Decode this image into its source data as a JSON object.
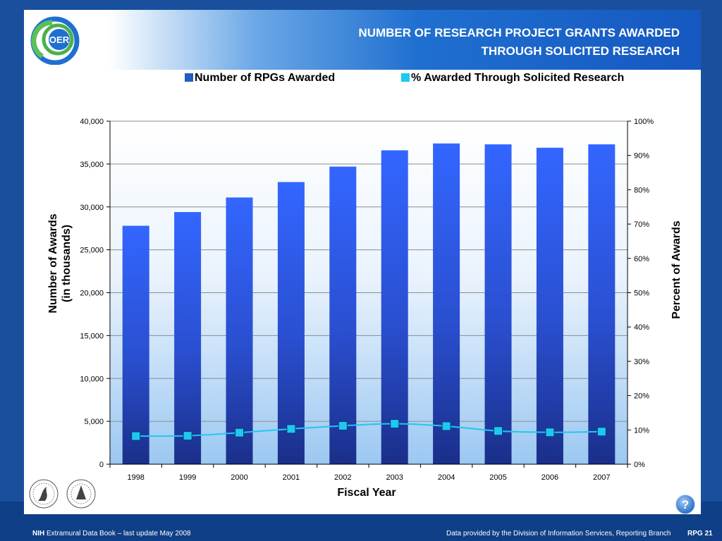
{
  "header": {
    "title_line1": "NUMBER OF RESEARCH PROJECT GRANTS AWARDED",
    "title_line2": "THROUGH SOLICITED RESEARCH",
    "logo_text": "OER"
  },
  "legend": {
    "items": [
      {
        "label": "Number of RPGs Awarded",
        "color": "#1f5fc0"
      },
      {
        "label": "% Awarded Through Solicited Research",
        "color": "#1ec8f0"
      }
    ]
  },
  "chart_data": {
    "type": "bar",
    "categories": [
      "1998",
      "1999",
      "2000",
      "2001",
      "2002",
      "2003",
      "2004",
      "2005",
      "2006",
      "2007"
    ],
    "series": [
      {
        "name": "Number of RPGs Awarded",
        "type": "bar",
        "axis": "left",
        "values": [
          27800,
          29400,
          31100,
          32900,
          34700,
          36600,
          37400,
          37300,
          36900,
          37300
        ]
      },
      {
        "name": "% Awarded Through Solicited Research",
        "type": "line",
        "axis": "right",
        "values": [
          8.2,
          8.3,
          9.2,
          10.3,
          11.2,
          11.8,
          11.1,
          9.7,
          9.3,
          9.5
        ]
      }
    ],
    "xlabel": "Fiscal Year",
    "ylabel_line1": "Number of Awards",
    "ylabel_line2": "(in thousands)",
    "y2label": "Percent of Awards",
    "ylim": [
      0,
      40000
    ],
    "y2lim": [
      0,
      100
    ],
    "yticks": [
      "0",
      "5,000",
      "10,000",
      "15,000",
      "20,000",
      "25,000",
      "30,000",
      "35,000",
      "40,000"
    ],
    "y2ticks": [
      "0%",
      "10%",
      "20%",
      "30%",
      "40%",
      "50%",
      "60%",
      "70%",
      "80%",
      "90%",
      "100%"
    ],
    "grid": true,
    "legend_position": "top"
  },
  "footer": {
    "left_bold": "NIH",
    "left_text": "Extramural Data Book – last update May 2008",
    "right_text": "Data provided by the Division of Information Services, Reporting Branch",
    "page_label": "RPG 21",
    "help_symbol": "?"
  },
  "colors": {
    "background": "#1a4f9e",
    "bar_top": "#3366ff",
    "bar_bottom": "#1a2f8a",
    "line": "#1ec8f0"
  }
}
